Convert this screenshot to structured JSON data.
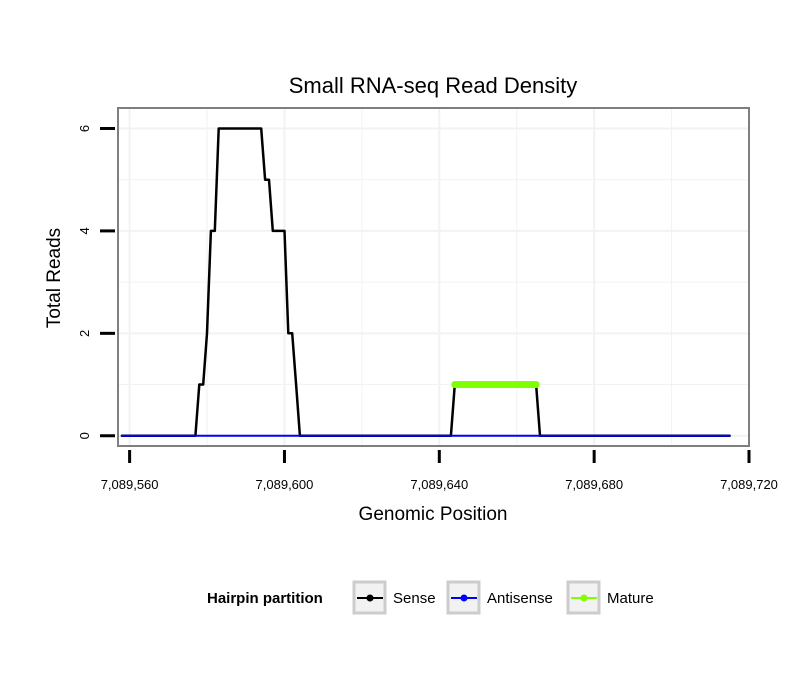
{
  "chart_data": {
    "type": "line",
    "title": "Small RNA-seq Read Density",
    "xlabel": "Genomic Position",
    "ylabel": "Total Reads",
    "xlim": [
      7089557,
      7089720
    ],
    "ylim": [
      -0.2,
      6.4
    ],
    "x_ticks": [
      7089560,
      7089600,
      7089640,
      7089680,
      7089720
    ],
    "x_tick_labels": [
      "7,089,560",
      "7,089,600",
      "7,089,640",
      "7,089,680",
      "7,089,720"
    ],
    "y_ticks": [
      0,
      2,
      4,
      6
    ],
    "y_tick_labels": [
      "0",
      "2",
      "4",
      "6"
    ],
    "grid": true,
    "legend": {
      "title": "Hairpin partition",
      "position": "bottom",
      "entries": [
        "Sense",
        "Antisense",
        "Mature"
      ]
    },
    "series": [
      {
        "name": "Sense",
        "color": "#000000",
        "width": 2.5,
        "x": [
          7089558,
          7089577,
          7089578,
          7089579,
          7089580,
          7089581,
          7089582,
          7089583,
          7089585,
          7089594,
          7089595,
          7089596,
          7089597,
          7089600,
          7089601,
          7089602,
          7089603,
          7089604,
          7089605,
          7089643,
          7089644,
          7089665,
          7089666,
          7089715
        ],
        "values": [
          0,
          0,
          1,
          1,
          2,
          4,
          4,
          6,
          6,
          6,
          5,
          5,
          4,
          4,
          2,
          2,
          1,
          0,
          0,
          0,
          1,
          1,
          0,
          0
        ]
      },
      {
        "name": "Antisense",
        "color": "#0000ff",
        "width": 2,
        "x": [
          7089558,
          7089715
        ],
        "values": [
          0,
          0
        ]
      },
      {
        "name": "Mature",
        "color": "#7fff00",
        "width": 7,
        "x": [
          7089644,
          7089665
        ],
        "values": [
          1,
          1
        ]
      }
    ]
  }
}
